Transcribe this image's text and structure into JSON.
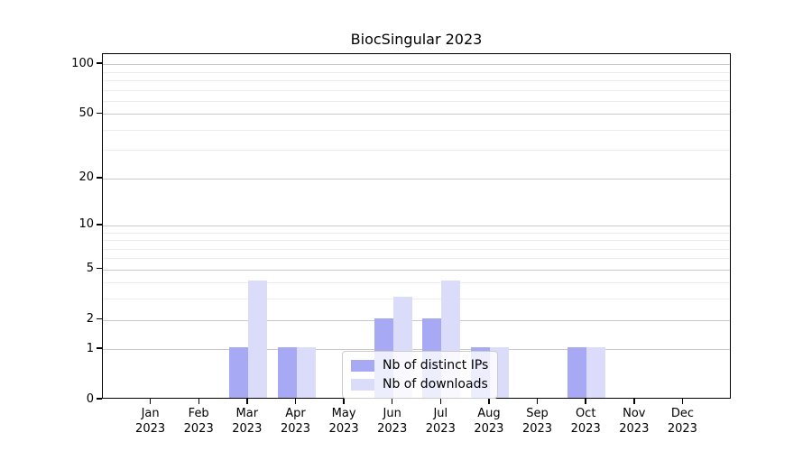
{
  "chart_data": {
    "type": "bar",
    "title": "BiocSingular 2023",
    "categories": [
      "Jan",
      "Feb",
      "Mar",
      "Apr",
      "May",
      "Jun",
      "Jul",
      "Aug",
      "Sep",
      "Oct",
      "Nov",
      "Dec"
    ],
    "category_year": "2023",
    "series": [
      {
        "name": "Nb of distinct IPs",
        "color": "#a7a9f4",
        "values": [
          0,
          0,
          1,
          1,
          0,
          2,
          2,
          1,
          0,
          1,
          0,
          0
        ]
      },
      {
        "name": "Nb of downloads",
        "color": "#dadcf9",
        "values": [
          0,
          0,
          4,
          1,
          0,
          3,
          4,
          1,
          0,
          1,
          0,
          0
        ]
      }
    ],
    "xlabel": "",
    "ylabel": "",
    "yscale": "log1p",
    "ylim": [
      0,
      115
    ],
    "yticks": [
      0,
      1,
      2,
      5,
      10,
      20,
      50,
      100
    ],
    "minor_gridlines": [
      3,
      4,
      6,
      7,
      8,
      9,
      30,
      40,
      60,
      70,
      80,
      90
    ],
    "grid": "horizontal",
    "legend_position": "lower center",
    "colors": {
      "major_grid": "#c9c9c9",
      "minor_grid": "#ececec",
      "axis": "#000000",
      "text": "#000000",
      "background": "#ffffff"
    }
  }
}
